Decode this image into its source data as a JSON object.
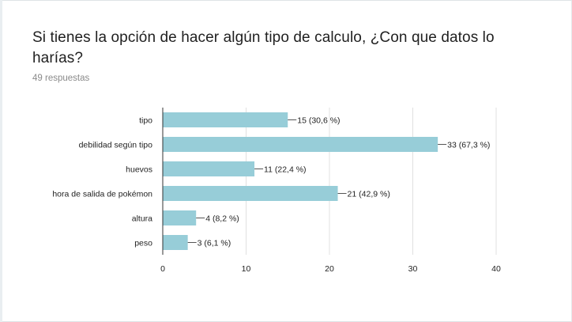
{
  "question": {
    "title": "Si tienes la opción de hacer algún tipo de calculo, ¿Con que datos lo harías?",
    "responses": "49 respuestas"
  },
  "colors": {
    "bar": "#97cdd8",
    "grid": "#e0e0e0",
    "axis": "#333333",
    "leader": "#555555"
  },
  "chart_data": {
    "type": "bar",
    "orientation": "horizontal",
    "categories": [
      "tipo",
      "debilidad según tipo",
      "huevos",
      "hora de salida de pokémon",
      "altura",
      "peso"
    ],
    "values": [
      15,
      33,
      11,
      21,
      4,
      3
    ],
    "data_labels": [
      "15 (30,6 %)",
      "33 (67,3 %)",
      "11 (22,4 %)",
      "21 (42,9 %)",
      "4 (8,2 %)",
      "3 (6,1 %)"
    ],
    "xlim": [
      0,
      40
    ],
    "xticks": [
      0,
      10,
      20,
      30,
      40
    ],
    "grid": true,
    "title": "",
    "xlabel": "",
    "ylabel": ""
  }
}
